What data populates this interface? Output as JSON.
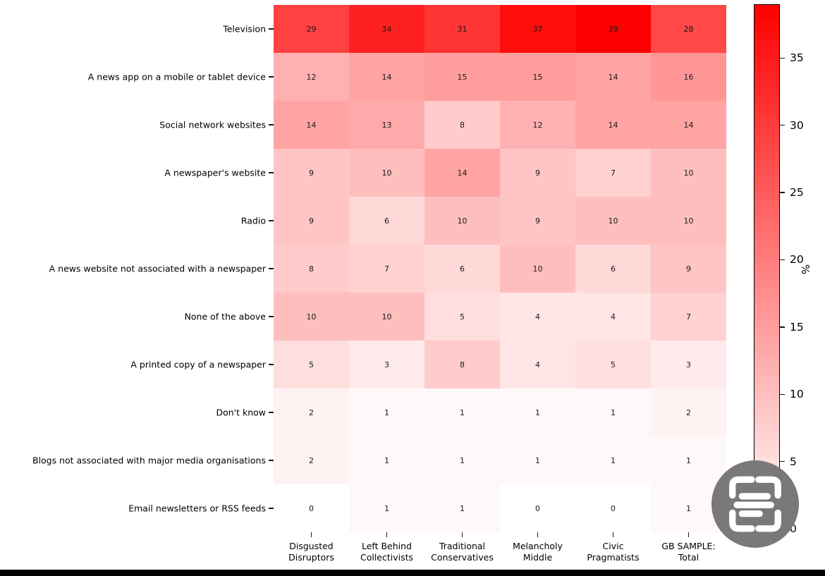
{
  "chart_data": {
    "type": "heatmap",
    "title": "",
    "rows": [
      "Television",
      "A news app on a mobile or tablet device",
      "Social network websites",
      "A newspaper's website",
      "Radio",
      "A news website not associated with a newspaper",
      "None of the above",
      "A printed copy of a newspaper",
      "Don't know",
      "Blogs not associated with major media organisations",
      "Email newsletters or RSS feeds"
    ],
    "columns": [
      {
        "line1": "Disgusted",
        "line2": "Disruptors"
      },
      {
        "line1": "Left Behind",
        "line2": "Collectivists"
      },
      {
        "line1": "Traditional",
        "line2": "Conservatives"
      },
      {
        "line1": "Melancholy",
        "line2": "Middle"
      },
      {
        "line1": "Civic",
        "line2": "Pragmatists"
      },
      {
        "line1": "GB SAMPLE:",
        "line2": "Total"
      }
    ],
    "values": [
      [
        29,
        34,
        31,
        37,
        39,
        28
      ],
      [
        12,
        14,
        15,
        15,
        14,
        16
      ],
      [
        14,
        13,
        8,
        12,
        14,
        14
      ],
      [
        9,
        10,
        14,
        9,
        7,
        10
      ],
      [
        9,
        6,
        10,
        9,
        10,
        10
      ],
      [
        8,
        7,
        6,
        10,
        6,
        9
      ],
      [
        10,
        10,
        5,
        4,
        4,
        7
      ],
      [
        5,
        3,
        8,
        4,
        5,
        3
      ],
      [
        2,
        1,
        1,
        1,
        1,
        2
      ],
      [
        2,
        1,
        1,
        1,
        1,
        1
      ],
      [
        0,
        1,
        1,
        0,
        0,
        1
      ]
    ],
    "vmin": 0,
    "vmax": 39,
    "color_low": "#ffffff",
    "color_high": "#ff0000",
    "colorbar": {
      "label": "%",
      "ticks": [
        0,
        5,
        10,
        15,
        20,
        25,
        30,
        35
      ],
      "position": "right"
    },
    "grid": false
  },
  "overlay": {
    "icon": "scan-text-icon",
    "circle_color": "#7b7878",
    "glyph_color": "#ffffff"
  },
  "footer_bar_color": "#000000"
}
